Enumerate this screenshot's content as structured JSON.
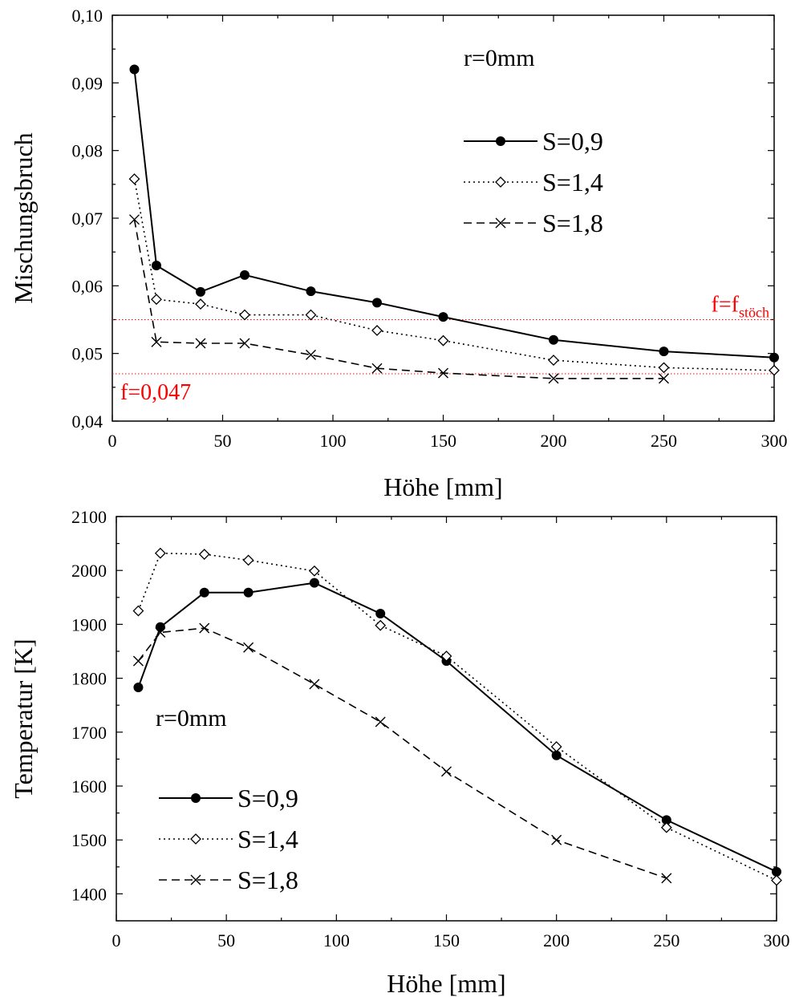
{
  "chart_data": [
    {
      "type": "line",
      "xlabel": "Höhe [mm]",
      "ylabel": "Mischungsbruch",
      "xlim": [
        0,
        300
      ],
      "ylim": [
        0.04,
        0.1
      ],
      "xticks": [
        0,
        50,
        100,
        150,
        200,
        250,
        300
      ],
      "yticks": [
        0.04,
        0.05,
        0.06,
        0.07,
        0.08,
        0.09,
        0.1
      ],
      "xtick_labels": [
        "0",
        "50",
        "100",
        "150",
        "200",
        "250",
        "300"
      ],
      "ytick_labels": [
        "0,04",
        "0,05",
        "0,06",
        "0,07",
        "0,08",
        "0,09",
        "0,10"
      ],
      "annotation": "r=0mm",
      "legend_position": "upper-right",
      "reference_lines": [
        {
          "y": 0.055,
          "label_main": "f=f",
          "label_sub": "stöch",
          "color": "#ff0000",
          "position": "right"
        },
        {
          "y": 0.047,
          "label": "f=0,047",
          "color": "#ff0000",
          "position": "left"
        }
      ],
      "series": [
        {
          "name": "S=0,9",
          "style": "solid",
          "marker": "filled-circle",
          "x": [
            10,
            20,
            40,
            60,
            90,
            120,
            150,
            200,
            250,
            300
          ],
          "y": [
            0.092,
            0.063,
            0.0591,
            0.0616,
            0.0592,
            0.0575,
            0.0554,
            0.052,
            0.0503,
            0.0494
          ]
        },
        {
          "name": "S=1,4",
          "style": "dotted",
          "marker": "open-diamond",
          "x": [
            10,
            20,
            40,
            60,
            90,
            120,
            150,
            200,
            250,
            300
          ],
          "y": [
            0.0758,
            0.058,
            0.0573,
            0.0557,
            0.0557,
            0.0534,
            0.0519,
            0.049,
            0.0479,
            0.0475
          ]
        },
        {
          "name": "S=1,8",
          "style": "dashed",
          "marker": "cross",
          "x": [
            10,
            20,
            40,
            60,
            90,
            120,
            150,
            200,
            250
          ],
          "y": [
            0.0698,
            0.0517,
            0.0515,
            0.0515,
            0.0498,
            0.0478,
            0.0471,
            0.0463,
            0.0463
          ]
        }
      ]
    },
    {
      "type": "line",
      "xlabel": "Höhe [mm]",
      "ylabel": "Temperatur [K]",
      "xlim": [
        0,
        300
      ],
      "ylim": [
        1350,
        2100
      ],
      "xticks": [
        0,
        50,
        100,
        150,
        200,
        250,
        300
      ],
      "yticks": [
        1400,
        1500,
        1600,
        1700,
        1800,
        1900,
        2000,
        2100
      ],
      "xtick_labels": [
        "0",
        "50",
        "100",
        "150",
        "200",
        "250",
        "300"
      ],
      "ytick_labels": [
        "1400",
        "1500",
        "1600",
        "1700",
        "1800",
        "1900",
        "2000",
        "2100"
      ],
      "annotation": "r=0mm",
      "legend_position": "lower-left",
      "series": [
        {
          "name": "S=0,9",
          "style": "solid",
          "marker": "filled-circle",
          "x": [
            10,
            20,
            40,
            60,
            90,
            120,
            150,
            200,
            250,
            300
          ],
          "y": [
            1783,
            1895,
            1959,
            1959,
            1977,
            1920,
            1832,
            1657,
            1537,
            1441
          ]
        },
        {
          "name": "S=1,4",
          "style": "dotted",
          "marker": "open-diamond",
          "x": [
            10,
            20,
            40,
            60,
            90,
            120,
            150,
            200,
            250,
            300
          ],
          "y": [
            1925,
            2032,
            2030,
            2019,
            1999,
            1898,
            1841,
            1673,
            1523,
            1425
          ]
        },
        {
          "name": "S=1,8",
          "style": "dashed",
          "marker": "cross",
          "x": [
            10,
            20,
            40,
            60,
            90,
            120,
            150,
            200,
            250
          ],
          "y": [
            1832,
            1885,
            1893,
            1857,
            1789,
            1719,
            1627,
            1500,
            1429
          ]
        }
      ]
    }
  ]
}
